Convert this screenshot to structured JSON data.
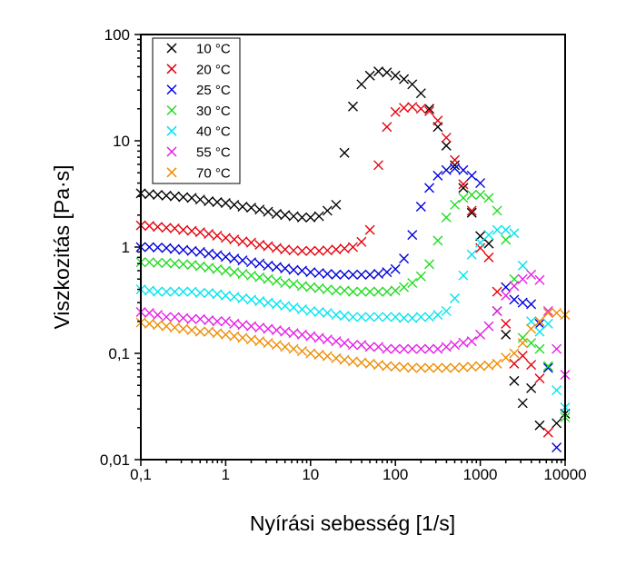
{
  "chart_data": {
    "type": "scatter",
    "title": "",
    "xlabel": "Nyírási sebesség [1/s]",
    "ylabel": "Viszkozitás [Pa·s]",
    "xscale": "log",
    "yscale": "log",
    "xlim": [
      0.1,
      10000
    ],
    "ylim": [
      0.01,
      100
    ],
    "xticks": [
      0.1,
      1,
      10,
      100,
      1000,
      10000
    ],
    "xtick_labels": [
      "0,1",
      "1",
      "10",
      "100",
      "1000",
      "10000"
    ],
    "yticks": [
      100,
      10,
      1,
      0.1,
      0.01
    ],
    "ytick_labels": [
      "100",
      "10",
      "1",
      "0,1",
      "0,01"
    ],
    "grid": false,
    "legend_position": "top-left",
    "marker": "x",
    "x": [
      0.1,
      0.126,
      0.158,
      0.2,
      0.251,
      0.316,
      0.398,
      0.501,
      0.631,
      0.794,
      1,
      1.26,
      1.58,
      2,
      2.51,
      3.16,
      3.98,
      5.01,
      6.31,
      7.94,
      10,
      12.6,
      15.8,
      20,
      25.1,
      31.6,
      39.8,
      50.1,
      63.1,
      79.4,
      100,
      126,
      158,
      200,
      251,
      316,
      398,
      501,
      631,
      794,
      1000,
      1260,
      1580,
      2000,
      2510,
      3160,
      3980,
      5010,
      6310,
      7940,
      10000
    ],
    "series": [
      {
        "name": "10 °C",
        "color": "#000000",
        "values": [
          3.2,
          3.15,
          3.1,
          3.05,
          3.0,
          2.95,
          2.9,
          2.8,
          2.7,
          2.65,
          2.6,
          2.5,
          2.4,
          2.35,
          2.25,
          2.15,
          2.05,
          2.0,
          1.95,
          1.9,
          1.9,
          1.95,
          2.2,
          2.5,
          7.7,
          21,
          34,
          41,
          45,
          44,
          41,
          38,
          34,
          28,
          20,
          13.5,
          9,
          5.9,
          3.6,
          2.1,
          1.27,
          1.08,
          0.25,
          0.15,
          0.055,
          0.034,
          0.047,
          0.021,
          null,
          0.022,
          0.027
        ]
      },
      {
        "name": "20 °C",
        "color": "#e8000b",
        "values": [
          1.6,
          1.58,
          1.55,
          1.52,
          1.5,
          1.45,
          1.42,
          1.38,
          1.33,
          1.28,
          1.22,
          1.18,
          1.13,
          1.1,
          1.05,
          1.02,
          0.98,
          0.95,
          0.93,
          0.92,
          0.92,
          0.92,
          0.93,
          0.95,
          0.97,
          1.0,
          1.12,
          1.45,
          5.9,
          13.5,
          18.7,
          20.4,
          20.8,
          20,
          19,
          15.5,
          10.7,
          6.6,
          3.9,
          2.2,
          0.98,
          0.8,
          0.38,
          0.19,
          0.08,
          0.095,
          0.078,
          0.058,
          0.018,
          null,
          null
        ]
      },
      {
        "name": "25 °C",
        "color": "#0000dd",
        "values": [
          1.0,
          1.0,
          0.99,
          0.98,
          0.96,
          0.94,
          0.92,
          0.9,
          0.87,
          0.84,
          0.81,
          0.78,
          0.75,
          0.72,
          0.7,
          0.67,
          0.65,
          0.63,
          0.61,
          0.6,
          0.58,
          0.57,
          0.56,
          0.55,
          0.55,
          0.55,
          0.55,
          0.55,
          0.56,
          0.58,
          0.62,
          0.78,
          1.3,
          2.4,
          3.6,
          4.7,
          5.3,
          5.5,
          5.3,
          4.7,
          4.0,
          null,
          null,
          0.42,
          0.32,
          0.3,
          0.29,
          0.19,
          0.073,
          0.013,
          null
        ]
      },
      {
        "name": "30 °C",
        "color": "#1fdc1f",
        "values": [
          0.72,
          0.72,
          0.71,
          0.71,
          0.7,
          0.69,
          0.68,
          0.66,
          0.64,
          0.62,
          0.6,
          0.58,
          0.56,
          0.54,
          0.52,
          0.5,
          0.48,
          0.46,
          0.45,
          0.43,
          0.42,
          0.41,
          0.4,
          0.39,
          0.39,
          0.38,
          0.38,
          0.38,
          0.38,
          0.38,
          0.39,
          0.42,
          0.46,
          0.53,
          0.69,
          1.15,
          1.9,
          2.5,
          2.9,
          3.1,
          3.1,
          2.9,
          2.2,
          1.17,
          0.5,
          0.14,
          0.125,
          0.11,
          0.076,
          null,
          0.025
        ]
      },
      {
        "name": "40 °C",
        "color": "#00e4f0",
        "values": [
          0.4,
          0.39,
          0.38,
          0.38,
          0.38,
          0.38,
          0.38,
          0.37,
          0.37,
          0.36,
          0.35,
          0.34,
          0.33,
          0.32,
          0.31,
          0.3,
          0.29,
          0.28,
          0.27,
          0.26,
          0.25,
          0.245,
          0.24,
          0.23,
          0.225,
          0.22,
          0.22,
          0.22,
          0.22,
          0.22,
          0.22,
          0.215,
          0.215,
          0.22,
          0.22,
          0.23,
          0.25,
          0.33,
          0.54,
          0.85,
          1.1,
          1.3,
          1.45,
          1.45,
          1.35,
          0.67,
          0.2,
          0.16,
          0.19,
          0.045,
          0.031
        ]
      },
      {
        "name": "55 °C",
        "color": "#e61ee6",
        "values": [
          0.245,
          0.24,
          0.23,
          0.22,
          0.22,
          0.215,
          0.21,
          0.21,
          0.205,
          0.2,
          0.2,
          0.19,
          0.185,
          0.18,
          0.175,
          0.17,
          0.165,
          0.16,
          0.155,
          0.15,
          0.145,
          0.14,
          0.135,
          0.13,
          0.125,
          0.12,
          0.12,
          0.115,
          0.115,
          0.11,
          0.11,
          0.11,
          0.11,
          0.11,
          0.11,
          0.11,
          0.115,
          0.12,
          0.126,
          0.13,
          0.15,
          0.18,
          0.25,
          0.35,
          0.43,
          0.5,
          0.55,
          0.49,
          0.25,
          0.11,
          0.063
        ]
      },
      {
        "name": "70 °C",
        "color": "#f08c00",
        "values": [
          0.195,
          0.19,
          0.185,
          0.18,
          0.175,
          0.17,
          0.165,
          0.16,
          0.16,
          0.155,
          0.15,
          0.145,
          0.14,
          0.135,
          0.13,
          0.125,
          0.12,
          0.115,
          0.11,
          0.105,
          0.1,
          0.097,
          0.094,
          0.09,
          0.087,
          0.084,
          0.082,
          0.08,
          0.078,
          0.076,
          0.075,
          0.074,
          0.073,
          0.073,
          0.073,
          0.073,
          0.073,
          0.073,
          0.074,
          0.075,
          0.076,
          0.077,
          0.08,
          0.091,
          0.1,
          0.125,
          0.17,
          0.2,
          0.24,
          0.24,
          0.23
        ]
      }
    ]
  }
}
